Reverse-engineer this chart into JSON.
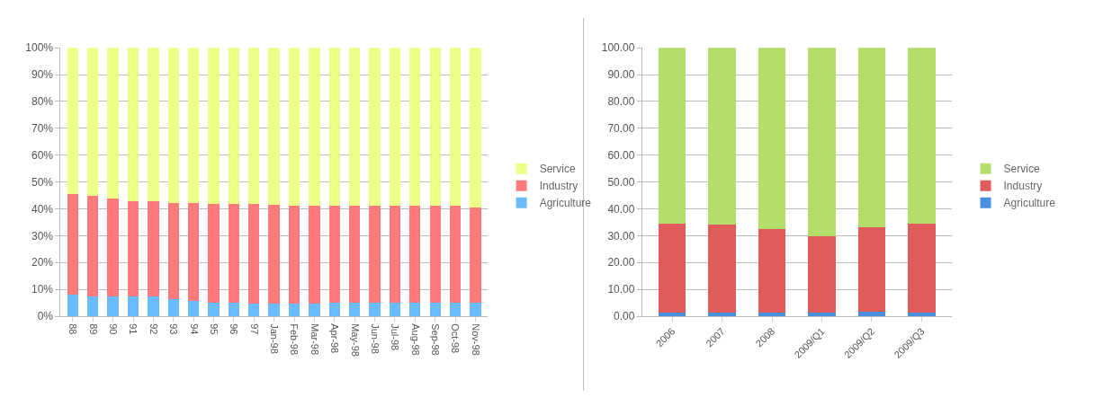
{
  "chart_data": [
    {
      "type": "bar",
      "stacked": true,
      "categories": [
        "88",
        "89",
        "90",
        "91",
        "92",
        "93",
        "94",
        "95",
        "96",
        "97",
        "Jan-98",
        "Feb-98",
        "Mar-98",
        "Apr-98",
        "May-98",
        "Jun-98",
        "Jul-98",
        "Aug-98",
        "Sep-98",
        "Oct-98",
        "Nov-98"
      ],
      "series": [
        {
          "name": "Agriculture",
          "color": "#6bbcff",
          "values": [
            8,
            7.5,
            7.5,
            7.5,
            7.2,
            6.3,
            5.6,
            5.1,
            5,
            4.8,
            4.8,
            4.8,
            4.8,
            4.9,
            4.9,
            4.9,
            5,
            5,
            5,
            5,
            5
          ]
        },
        {
          "name": "Industry",
          "color": "#ff7a7a",
          "values": [
            37.5,
            37.5,
            36.5,
            35.5,
            35.5,
            36,
            36.5,
            36.9,
            37,
            37.2,
            36.7,
            36.5,
            36.4,
            36.4,
            36.4,
            36.4,
            36.3,
            36.3,
            36.3,
            36.2,
            35.6
          ]
        },
        {
          "name": "Service",
          "color": "#eeff88",
          "values": [
            54.5,
            55,
            56,
            57,
            57.3,
            57.7,
            57.9,
            58,
            58,
            58,
            58.5,
            58.7,
            58.8,
            58.7,
            58.7,
            58.7,
            58.7,
            58.7,
            58.7,
            58.8,
            59.4
          ]
        }
      ],
      "ylim": [
        0,
        100
      ],
      "yticks": [
        {
          "value": 0,
          "label": "0%"
        },
        {
          "value": 10,
          "label": "10%"
        },
        {
          "value": 20,
          "label": "20%"
        },
        {
          "value": 30,
          "label": "30%"
        },
        {
          "value": 40,
          "label": "40%"
        },
        {
          "value": 50,
          "label": "50%"
        },
        {
          "value": 60,
          "label": "60%"
        },
        {
          "value": 70,
          "label": "70%"
        },
        {
          "value": 80,
          "label": "80%"
        },
        {
          "value": 90,
          "label": "90%"
        },
        {
          "value": 100,
          "label": "100%"
        }
      ],
      "grid": "y",
      "legend": "right"
    },
    {
      "type": "bar",
      "stacked": true,
      "categories": [
        "2006",
        "2007",
        "2008",
        "2009/Q1",
        "2009/Q2",
        "2009/Q3"
      ],
      "series": [
        {
          "name": "Agriculture",
          "color": "#4a8fdf",
          "values": [
            1.2,
            1.2,
            1.2,
            1.2,
            1.6,
            1.2
          ]
        },
        {
          "name": "Industry",
          "color": "#e05c5a",
          "values": [
            33.2,
            33.1,
            31.2,
            28.5,
            31.5,
            33.2
          ]
        },
        {
          "name": "Service",
          "color": "#b5dd6a",
          "values": [
            65.6,
            65.7,
            67.6,
            70.3,
            66.9,
            65.6
          ]
        }
      ],
      "ylim": [
        0,
        100
      ],
      "yticks": [
        {
          "value": 0,
          "label": "0.00"
        },
        {
          "value": 10,
          "label": "10.00"
        },
        {
          "value": 20,
          "label": "20.00"
        },
        {
          "value": 30,
          "label": "30.00"
        },
        {
          "value": 40,
          "label": "40.00"
        },
        {
          "value": 50,
          "label": "50.00"
        },
        {
          "value": 60,
          "label": "60.00"
        },
        {
          "value": 70,
          "label": "70.00"
        },
        {
          "value": 80,
          "label": "80.00"
        },
        {
          "value": 90,
          "label": "90.00"
        },
        {
          "value": 100,
          "label": "100.00"
        }
      ],
      "grid": "y",
      "legend": "right"
    }
  ]
}
